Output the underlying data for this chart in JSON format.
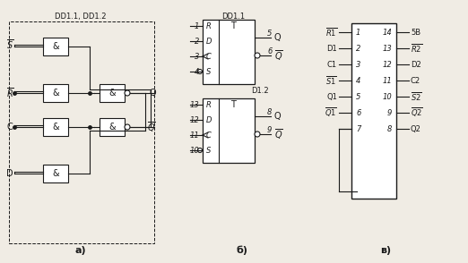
{
  "bg_color": "#f0ece4",
  "title": "",
  "label_a": "а)",
  "label_b": "б)",
  "label_v": "в)",
  "dd_label_ab": "DD1.1, DD1.2",
  "dd1_1_label": "DD1.1",
  "dd1_2_label": "D1.2",
  "line_color": "#1a1a1a",
  "font_size": 7,
  "small_font": 6
}
